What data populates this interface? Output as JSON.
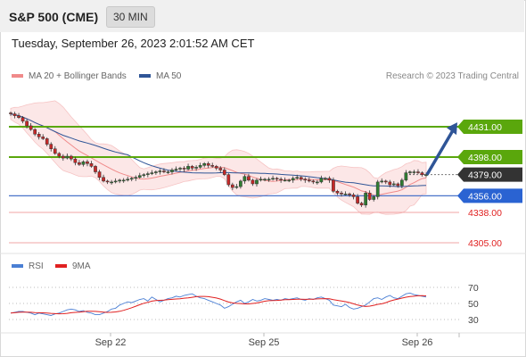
{
  "header": {
    "symbol": "S&P 500 (CME)",
    "timeframe": "30 MIN"
  },
  "datetime": "Tuesday, September 26, 2023 2:01:52 AM CET",
  "legend_main": [
    {
      "label": "MA 20 + Bollinger Bands",
      "color": "#f08a8a"
    },
    {
      "label": "MA 50",
      "color": "#2f5597"
    }
  ],
  "copyright": "Research © 2023 Trading Central",
  "legend_rsi": [
    {
      "label": "RSI",
      "color": "#4a7fd4"
    },
    {
      "label": "9MA",
      "color": "#e02020"
    }
  ],
  "price_levels": [
    {
      "label": "4431.00",
      "value": 4431,
      "style": "resistance-green"
    },
    {
      "label": "4398.00",
      "value": 4398,
      "style": "resistance-green"
    },
    {
      "label": "4379.00",
      "value": 4379,
      "style": "last-price"
    },
    {
      "label": "4356.00",
      "value": 4356,
      "style": "pivot-blue"
    },
    {
      "label": "4338.00",
      "value": 4338,
      "style": "support-red"
    },
    {
      "label": "4305.00",
      "value": 4305,
      "style": "support-red"
    }
  ],
  "rsi_levels": [
    "70",
    "50",
    "30"
  ],
  "x_axis_labels": [
    "Sep 22",
    "Sep 25",
    "Sep 26"
  ],
  "chart_data": {
    "type": "candlestick",
    "price_range": [
      4290,
      4480
    ],
    "closes": [
      4445,
      4443,
      4441,
      4437,
      4432,
      4428,
      4423,
      4420,
      4418,
      4412,
      4407,
      4402,
      4399,
      4397,
      4399,
      4396,
      4392,
      4390,
      4393,
      4391,
      4388,
      4382,
      4376,
      4372,
      4371,
      4371,
      4372,
      4373,
      4373,
      4374,
      4375,
      4376,
      4378,
      4379,
      4380,
      4381,
      4382,
      4383,
      4382,
      4382,
      4384,
      4385,
      4386,
      4385,
      4388,
      4386,
      4387,
      4389,
      4391,
      4389,
      4388,
      4386,
      4384,
      4379,
      4368,
      4365,
      4366,
      4372,
      4377,
      4373,
      4369,
      4373,
      4374,
      4374,
      4374,
      4375,
      4374,
      4373,
      4373,
      4373,
      4375,
      4376,
      4374,
      4373,
      4372,
      4371,
      4371,
      4375,
      4375,
      4373,
      4361,
      4359,
      4358,
      4358,
      4357,
      4355,
      4348,
      4346,
      4359,
      4352,
      4355,
      4371,
      4372,
      4371,
      4368,
      4369,
      4367,
      4373,
      4381,
      4382,
      4382,
      4381,
      4379,
      4379
    ],
    "rsi": [
      38,
      39,
      40,
      40,
      39,
      38,
      36,
      38,
      37,
      36,
      35,
      37,
      38,
      40,
      42,
      43,
      42,
      40,
      41,
      39,
      38,
      36,
      36,
      38,
      40,
      43,
      44,
      48,
      50,
      52,
      51,
      53,
      55,
      56,
      53,
      58,
      55,
      52,
      54,
      56,
      57,
      59,
      58,
      60,
      61,
      62,
      59,
      57,
      56,
      54,
      52,
      50,
      48,
      44,
      46,
      49,
      52,
      54,
      50,
      52,
      55,
      53,
      54,
      56,
      55,
      54,
      55,
      54,
      56,
      55,
      56,
      57,
      55,
      54,
      56,
      55,
      57,
      58,
      56,
      54,
      48,
      47,
      46,
      49,
      45,
      43,
      44,
      46,
      48,
      52,
      56,
      57,
      55,
      58,
      60,
      57,
      56,
      59,
      62,
      63,
      61,
      60,
      59,
      58
    ]
  }
}
